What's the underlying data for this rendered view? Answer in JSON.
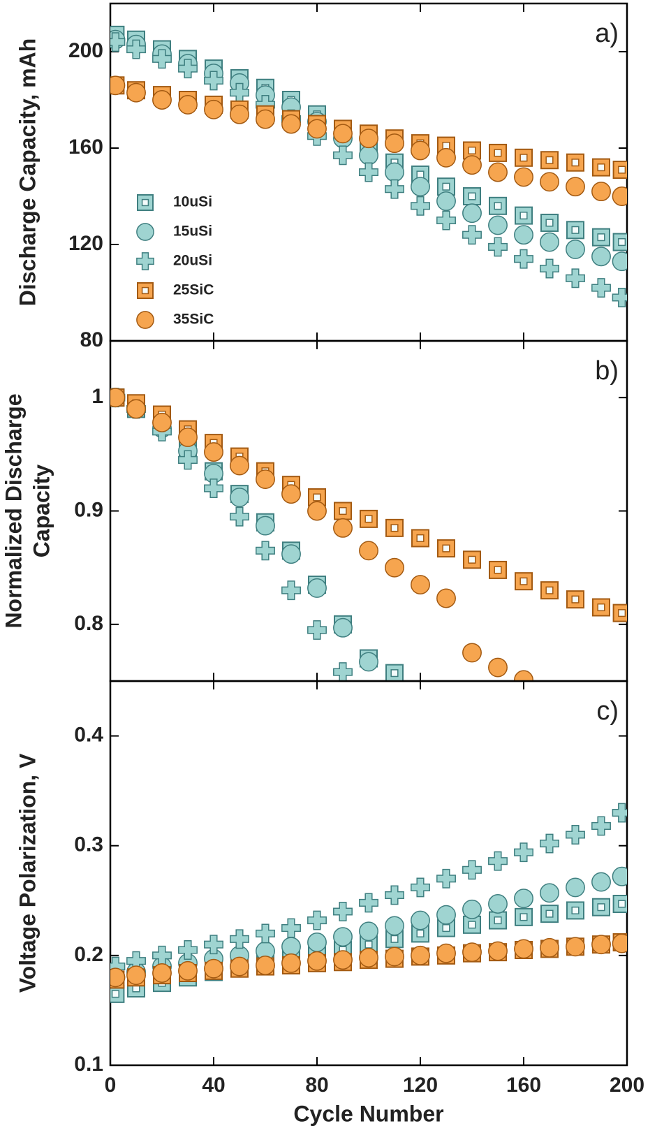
{
  "chart_data": [
    {
      "type": "scatter",
      "panel_label": "a)",
      "ylabel": [
        "Discharge Capacity, mAh"
      ],
      "xlim": [
        0,
        200
      ],
      "xticks": [
        0,
        40,
        80,
        120,
        160,
        200
      ],
      "ylim": [
        80,
        220
      ],
      "yticks": [
        80,
        120,
        160,
        200
      ],
      "legend": "left",
      "x": [
        2,
        10,
        20,
        30,
        40,
        50,
        60,
        70,
        80,
        90,
        100,
        110,
        120,
        130,
        140,
        150,
        160,
        170,
        180,
        190,
        198
      ],
      "series": [
        {
          "name": "10uSi",
          "marker": "square-open",
          "color": "#9fd4d1",
          "edgecolor": "#3f7f80",
          "values": [
            207,
            205,
            201,
            197,
            193,
            189,
            185,
            180,
            174,
            167,
            160,
            154,
            149,
            144,
            140,
            136,
            132,
            129,
            126,
            123,
            121
          ]
        },
        {
          "name": "15uSi",
          "marker": "circle",
          "color": "#9fd4d1",
          "edgecolor": "#3f7f80",
          "values": [
            205,
            203,
            199,
            195,
            191,
            187,
            182,
            177,
            171,
            164,
            157,
            150,
            144,
            138,
            133,
            128,
            124,
            121,
            118,
            115,
            113
          ]
        },
        {
          "name": "20uSi",
          "marker": "plus",
          "color": "#9fd4d1",
          "edgecolor": "#3f7f80",
          "values": [
            204,
            201,
            197,
            193,
            188,
            183,
            178,
            172,
            165,
            157,
            150,
            143,
            136,
            130,
            124,
            119,
            114,
            110,
            106,
            102,
            98
          ]
        },
        {
          "name": "25SiC",
          "marker": "square-open",
          "color": "#f6a54f",
          "edgecolor": "#a35a12",
          "values": [
            186,
            184,
            182,
            180,
            178,
            176,
            174,
            172,
            170,
            168,
            166,
            164,
            162,
            161,
            159,
            158,
            156,
            155,
            154,
            152,
            151
          ]
        },
        {
          "name": "35SiC",
          "marker": "circle",
          "color": "#f6a54f",
          "edgecolor": "#a35a12",
          "values": [
            186,
            183,
            180,
            178,
            176,
            174,
            172,
            170,
            168,
            166,
            164,
            162,
            159,
            156,
            153,
            150,
            148,
            146,
            144,
            142,
            140
          ]
        }
      ]
    },
    {
      "type": "scatter",
      "panel_label": "b)",
      "ylabel": [
        "Normalized Discharge",
        "Capacity"
      ],
      "xlim": [
        0,
        200
      ],
      "xticks": [
        0,
        40,
        80,
        120,
        160,
        200
      ],
      "ylim": [
        0.75,
        1.05
      ],
      "yticks": [
        0.8,
        0.9,
        1
      ],
      "x": [
        2,
        10,
        20,
        30,
        40,
        50,
        60,
        70,
        80,
        90,
        100,
        110,
        120,
        130,
        140,
        150,
        160,
        170,
        180,
        190,
        198
      ],
      "series": [
        {
          "marker": "square-open",
          "color": "#9fd4d1",
          "edgecolor": "#3f7f80",
          "values": [
            1,
            0.99,
            0.975,
            0.955,
            0.935,
            0.915,
            0.89,
            0.865,
            0.835,
            0.8,
            0.77,
            0.757,
            null,
            null,
            null,
            null,
            null,
            null,
            null,
            null,
            null
          ]
        },
        {
          "marker": "circle",
          "color": "#9fd4d1",
          "edgecolor": "#3f7f80",
          "values": [
            1,
            0.99,
            0.973,
            0.953,
            0.933,
            0.912,
            0.887,
            0.862,
            0.832,
            0.797,
            0.767,
            null,
            null,
            null,
            null,
            null,
            null,
            null,
            null,
            null,
            null
          ]
        },
        {
          "marker": "plus",
          "color": "#9fd4d1",
          "edgecolor": "#3f7f80",
          "values": [
            1,
            0.99,
            0.97,
            0.945,
            0.92,
            0.895,
            0.865,
            0.83,
            0.795,
            0.758,
            null,
            null,
            null,
            null,
            null,
            null,
            null,
            null,
            null,
            null,
            null
          ]
        },
        {
          "marker": "square-open",
          "color": "#f6a54f",
          "edgecolor": "#a35a12",
          "values": [
            1,
            0.995,
            0.985,
            0.972,
            0.96,
            0.948,
            0.935,
            0.923,
            0.912,
            0.9,
            0.893,
            0.885,
            0.876,
            0.867,
            0.857,
            0.848,
            0.838,
            0.83,
            0.822,
            0.815,
            0.81
          ]
        },
        {
          "marker": "circle",
          "color": "#f6a54f",
          "edgecolor": "#a35a12",
          "values": [
            1,
            0.99,
            0.978,
            0.965,
            0.952,
            0.94,
            0.928,
            0.915,
            0.9,
            0.885,
            0.865,
            0.85,
            0.835,
            0.823,
            0.775,
            0.762,
            0.751,
            null,
            null,
            null,
            null
          ]
        }
      ]
    },
    {
      "type": "scatter",
      "panel_label": "c)",
      "ylabel": [
        "Voltage Polarization, V"
      ],
      "xlabel": "Cycle Number",
      "xlim": [
        0,
        200
      ],
      "xticks": [
        0,
        40,
        80,
        120,
        160,
        200
      ],
      "xticklabels": true,
      "ylim": [
        0.1,
        0.45
      ],
      "yticks": [
        0.1,
        0.2,
        0.3,
        0.4
      ],
      "x": [
        2,
        10,
        20,
        30,
        40,
        50,
        60,
        70,
        80,
        90,
        100,
        110,
        120,
        130,
        140,
        150,
        160,
        170,
        180,
        190,
        198
      ],
      "series": [
        {
          "marker": "square-open",
          "color": "#9fd4d1",
          "edgecolor": "#3f7f80",
          "values": [
            0.165,
            0.17,
            0.175,
            0.18,
            0.185,
            0.19,
            0.193,
            0.197,
            0.2,
            0.205,
            0.21,
            0.215,
            0.22,
            0.225,
            0.228,
            0.232,
            0.235,
            0.238,
            0.241,
            0.244,
            0.247
          ]
        },
        {
          "marker": "circle",
          "color": "#9fd4d1",
          "edgecolor": "#3f7f80",
          "values": [
            0.18,
            0.185,
            0.19,
            0.193,
            0.197,
            0.2,
            0.204,
            0.208,
            0.212,
            0.217,
            0.222,
            0.227,
            0.232,
            0.237,
            0.242,
            0.247,
            0.252,
            0.257,
            0.262,
            0.267,
            0.272
          ]
        },
        {
          "marker": "plus",
          "color": "#9fd4d1",
          "edgecolor": "#3f7f80",
          "values": [
            0.19,
            0.195,
            0.2,
            0.205,
            0.21,
            0.215,
            0.22,
            0.225,
            0.232,
            0.24,
            0.248,
            0.255,
            0.262,
            0.27,
            0.278,
            0.286,
            0.294,
            0.302,
            0.31,
            0.318,
            0.33
          ]
        },
        {
          "marker": "square-open",
          "color": "#f6a54f",
          "edgecolor": "#a35a12",
          "values": [
            0.178,
            0.18,
            0.182,
            0.184,
            0.186,
            0.188,
            0.19,
            0.191,
            0.193,
            0.194,
            0.196,
            0.197,
            0.199,
            0.2,
            0.202,
            0.203,
            0.205,
            0.206,
            0.208,
            0.21,
            0.212
          ]
        },
        {
          "marker": "circle",
          "color": "#f6a54f",
          "edgecolor": "#a35a12",
          "values": [
            0.18,
            0.182,
            0.184,
            0.186,
            0.188,
            0.19,
            0.191,
            0.193,
            0.195,
            0.196,
            0.198,
            0.199,
            0.2,
            0.202,
            0.203,
            0.204,
            0.206,
            0.207,
            0.208,
            0.21,
            0.211
          ]
        }
      ]
    }
  ]
}
